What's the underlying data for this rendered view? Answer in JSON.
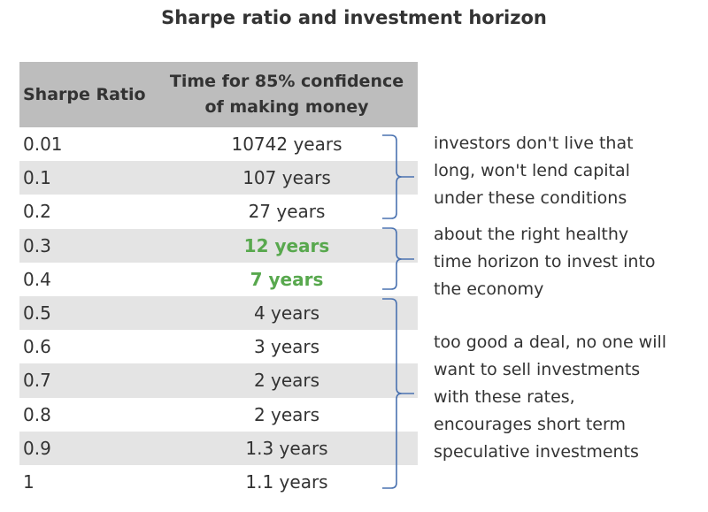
{
  "title": "Sharpe ratio and investment horizon",
  "table": {
    "headers": {
      "ratio": "Sharpe Ratio",
      "time_line1": "Time for 85% confidence",
      "time_line2": "of making money"
    },
    "rows": [
      {
        "ratio": "0.01",
        "time": "10742 years"
      },
      {
        "ratio": "0.1",
        "time": "107 years"
      },
      {
        "ratio": "0.2",
        "time": "27 years"
      },
      {
        "ratio": "0.3",
        "time": "12 years"
      },
      {
        "ratio": "0.4",
        "time": "7 years"
      },
      {
        "ratio": "0.5",
        "time": "4 years"
      },
      {
        "ratio": "0.6",
        "time": "3 years"
      },
      {
        "ratio": "0.7",
        "time": "2 years"
      },
      {
        "ratio": "0.8",
        "time": "2 years"
      },
      {
        "ratio": "0.9",
        "time": "1.3 years"
      },
      {
        "ratio": "1",
        "time": "1.1 years"
      }
    ]
  },
  "notes": {
    "too_long": "investors don't live that\nlong, won't lend capital\nunder these conditions",
    "healthy": "about the right healthy\ntime horizon to invest into\nthe economy",
    "too_short": "too good a deal, no one will\nwant to sell investments\nwith these rates,\nencourages short term\nspeculative investments"
  },
  "colors": {
    "header_bg": "#bdbdbd",
    "row_alt_bg": "#e4e4e4",
    "healthy_text": "#58a84e",
    "bracket": "#4a72b0"
  }
}
